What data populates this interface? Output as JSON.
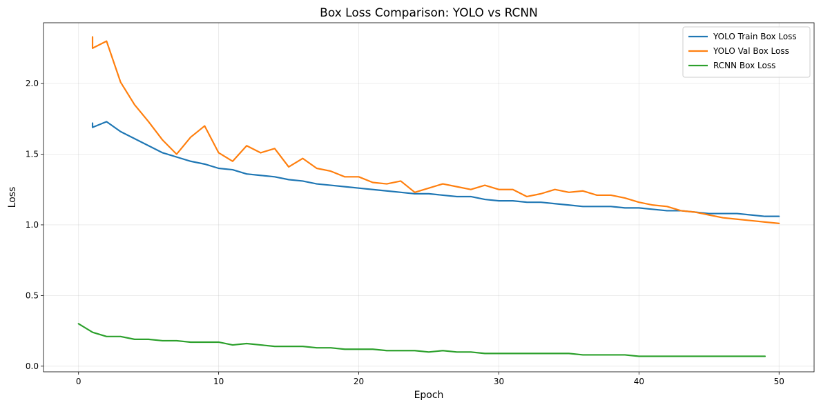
{
  "chart_data": {
    "type": "line",
    "title": "Box Loss Comparison: YOLO vs RCNN",
    "xlabel": "Epoch",
    "ylabel": "Loss",
    "xlim": [
      -2.5,
      52.5
    ],
    "ylim": [
      -0.04,
      2.43
    ],
    "xticks": [
      0,
      10,
      20,
      30,
      40,
      50
    ],
    "xtick_labels": [
      "0",
      "10",
      "20",
      "30",
      "40",
      "50"
    ],
    "yticks": [
      0.0,
      0.5,
      1.0,
      1.5,
      2.0
    ],
    "ytick_labels": [
      "0.0",
      "0.5",
      "1.0",
      "1.5",
      "2.0"
    ],
    "grid": true,
    "legend": "top-right",
    "series": [
      {
        "name": "YOLO Train Box Loss",
        "color": "#1f77b4",
        "x": [
          1,
          1,
          2,
          3,
          4,
          5,
          6,
          7,
          8,
          9,
          10,
          11,
          12,
          13,
          14,
          15,
          16,
          17,
          18,
          19,
          20,
          21,
          22,
          23,
          24,
          25,
          26,
          27,
          28,
          29,
          30,
          31,
          32,
          33,
          34,
          35,
          36,
          37,
          38,
          39,
          40,
          41,
          42,
          43,
          44,
          45,
          46,
          47,
          48,
          49,
          50
        ],
        "y": [
          1.72,
          1.69,
          1.73,
          1.66,
          1.61,
          1.56,
          1.51,
          1.48,
          1.45,
          1.43,
          1.4,
          1.39,
          1.36,
          1.35,
          1.34,
          1.32,
          1.31,
          1.29,
          1.28,
          1.27,
          1.26,
          1.25,
          1.24,
          1.23,
          1.22,
          1.22,
          1.21,
          1.2,
          1.2,
          1.18,
          1.17,
          1.17,
          1.16,
          1.16,
          1.15,
          1.14,
          1.13,
          1.13,
          1.13,
          1.12,
          1.12,
          1.11,
          1.1,
          1.1,
          1.09,
          1.08,
          1.08,
          1.08,
          1.07,
          1.06,
          1.06
        ]
      },
      {
        "name": "YOLO Val Box Loss",
        "color": "#ff7f0e",
        "x": [
          1,
          1,
          2,
          3,
          4,
          5,
          6,
          7,
          8,
          9,
          10,
          11,
          12,
          13,
          14,
          15,
          16,
          17,
          18,
          19,
          20,
          21,
          22,
          23,
          24,
          25,
          26,
          27,
          28,
          29,
          30,
          31,
          32,
          33,
          34,
          35,
          36,
          37,
          38,
          39,
          40,
          41,
          42,
          43,
          44,
          45,
          46,
          47,
          48,
          49,
          50
        ],
        "y": [
          2.33,
          2.25,
          2.3,
          2.01,
          1.85,
          1.73,
          1.6,
          1.5,
          1.62,
          1.7,
          1.51,
          1.45,
          1.56,
          1.51,
          1.54,
          1.41,
          1.47,
          1.4,
          1.38,
          1.34,
          1.34,
          1.3,
          1.29,
          1.31,
          1.23,
          1.26,
          1.29,
          1.27,
          1.25,
          1.28,
          1.25,
          1.25,
          1.2,
          1.22,
          1.25,
          1.23,
          1.24,
          1.21,
          1.21,
          1.19,
          1.16,
          1.14,
          1.13,
          1.1,
          1.09,
          1.07,
          1.05,
          1.04,
          1.03,
          1.02,
          1.01
        ]
      },
      {
        "name": "RCNN Box Loss",
        "color": "#2ca02c",
        "x": [
          0,
          1,
          2,
          3,
          4,
          5,
          6,
          7,
          8,
          9,
          10,
          11,
          12,
          13,
          14,
          15,
          16,
          17,
          18,
          19,
          20,
          21,
          22,
          23,
          24,
          25,
          26,
          27,
          28,
          29,
          30,
          31,
          32,
          33,
          34,
          35,
          36,
          37,
          38,
          39,
          40,
          41,
          42,
          43,
          44,
          45,
          46,
          47,
          48,
          49
        ],
        "y": [
          0.3,
          0.24,
          0.21,
          0.21,
          0.19,
          0.19,
          0.18,
          0.18,
          0.17,
          0.17,
          0.17,
          0.15,
          0.16,
          0.15,
          0.14,
          0.14,
          0.14,
          0.13,
          0.13,
          0.12,
          0.12,
          0.12,
          0.11,
          0.11,
          0.11,
          0.1,
          0.11,
          0.1,
          0.1,
          0.09,
          0.09,
          0.09,
          0.09,
          0.09,
          0.09,
          0.09,
          0.08,
          0.08,
          0.08,
          0.08,
          0.07,
          0.07,
          0.07,
          0.07,
          0.07,
          0.07,
          0.07,
          0.07,
          0.07,
          0.07
        ]
      }
    ]
  }
}
